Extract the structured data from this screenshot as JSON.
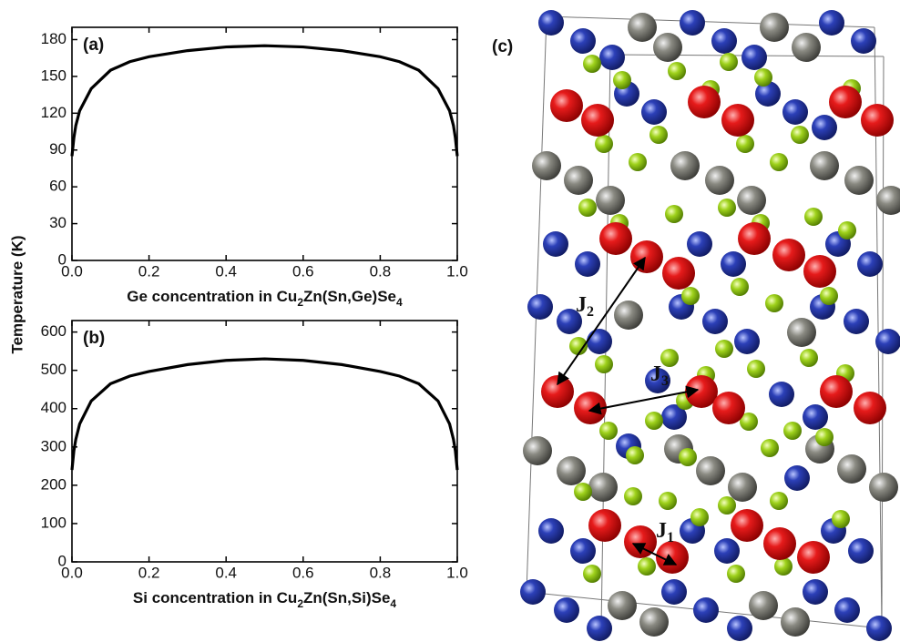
{
  "chart_data": [
    {
      "type": "line",
      "label": "(a)",
      "ylabel": "Temperature (K)",
      "xlabel": [
        "Ge concentration in Cu",
        "2",
        "Zn(Sn,Ge)Se",
        "4"
      ],
      "x": [
        0,
        0.005,
        0.01,
        0.02,
        0.05,
        0.1,
        0.15,
        0.2,
        0.3,
        0.4,
        0.5,
        0.6,
        0.7,
        0.8,
        0.85,
        0.9,
        0.95,
        0.98,
        0.99,
        0.995,
        1.0
      ],
      "values": [
        85,
        100,
        110,
        122,
        140,
        155,
        162,
        166,
        171,
        174,
        175,
        174,
        171,
        166,
        162,
        155,
        140,
        122,
        110,
        100,
        85
      ],
      "color": "#000000",
      "xlim": [
        0,
        1
      ],
      "ylim": [
        0,
        190
      ],
      "xticks": [
        {
          "value": 0,
          "label": "0.0"
        },
        {
          "value": 0.2,
          "label": "0.2"
        },
        {
          "value": 0.4,
          "label": "0.4"
        },
        {
          "value": 0.6,
          "label": "0.6"
        },
        {
          "value": 0.8,
          "label": "0.8"
        },
        {
          "value": 1,
          "label": "1.0"
        }
      ],
      "yticks": [
        0,
        30,
        60,
        90,
        120,
        150,
        180
      ]
    },
    {
      "type": "line",
      "label": "(b)",
      "xlabel": [
        "Si concentration in Cu",
        "2",
        "Zn(Sn,Si)Se",
        "4"
      ],
      "x": [
        0,
        0.005,
        0.01,
        0.02,
        0.05,
        0.1,
        0.15,
        0.2,
        0.3,
        0.4,
        0.5,
        0.6,
        0.7,
        0.8,
        0.85,
        0.9,
        0.95,
        0.98,
        0.99,
        0.995,
        1.0
      ],
      "values": [
        240,
        290,
        320,
        360,
        420,
        465,
        485,
        497,
        515,
        526,
        530,
        526,
        515,
        497,
        485,
        465,
        420,
        360,
        320,
        290,
        240
      ],
      "color": "#000000",
      "xlim": [
        0,
        1
      ],
      "ylim": [
        0,
        630
      ],
      "xticks": [
        {
          "value": 0,
          "label": "0.0"
        },
        {
          "value": 0.2,
          "label": "0.2"
        },
        {
          "value": 0.4,
          "label": "0.4"
        },
        {
          "value": 0.6,
          "label": "0.6"
        },
        {
          "value": 0.8,
          "label": "0.8"
        },
        {
          "value": 1,
          "label": "1.0"
        }
      ],
      "yticks": [
        0,
        100,
        200,
        300,
        400,
        500,
        600
      ]
    }
  ],
  "structure": {
    "label": "(c)",
    "couplings": [
      {
        "symbol": "J",
        "index": "2"
      },
      {
        "symbol": "J",
        "index": "3"
      },
      {
        "symbol": "J",
        "index": "1"
      }
    ]
  }
}
